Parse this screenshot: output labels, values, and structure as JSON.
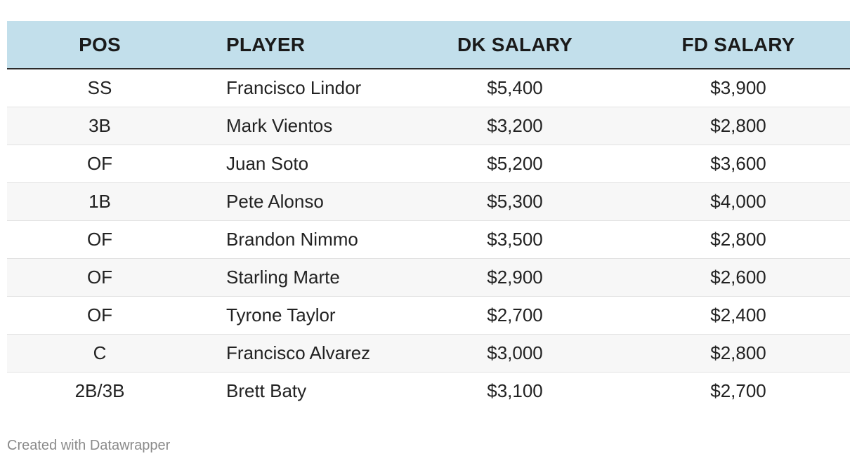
{
  "table": {
    "headers": {
      "pos": "POS",
      "player": "PLAYER",
      "dk_salary": "DK SALARY",
      "fd_salary": "FD SALARY"
    },
    "rows": [
      {
        "pos": "SS",
        "player": "Francisco Lindor",
        "dk_salary": "$5,400",
        "fd_salary": "$3,900"
      },
      {
        "pos": "3B",
        "player": "Mark Vientos",
        "dk_salary": "$3,200",
        "fd_salary": "$2,800"
      },
      {
        "pos": "OF",
        "player": "Juan Soto",
        "dk_salary": "$5,200",
        "fd_salary": "$3,600"
      },
      {
        "pos": "1B",
        "player": "Pete Alonso",
        "dk_salary": "$5,300",
        "fd_salary": "$4,000"
      },
      {
        "pos": "OF",
        "player": "Brandon Nimmo",
        "dk_salary": "$3,500",
        "fd_salary": "$2,800"
      },
      {
        "pos": "OF",
        "player": "Starling Marte",
        "dk_salary": "$2,900",
        "fd_salary": "$2,600"
      },
      {
        "pos": "OF",
        "player": "Tyrone Taylor",
        "dk_salary": "$2,700",
        "fd_salary": "$2,400"
      },
      {
        "pos": "C",
        "player": "Francisco Alvarez",
        "dk_salary": "$3,000",
        "fd_salary": "$2,800"
      },
      {
        "pos": "2B/3B",
        "player": "Brett Baty",
        "dk_salary": "$3,100",
        "fd_salary": "$2,700"
      }
    ]
  },
  "footer": {
    "credit": "Created with Datawrapper"
  },
  "colors": {
    "header_background": "#c2dfeb",
    "stripe_background": "#f7f7f7",
    "footer_text": "#8a8a8a"
  }
}
